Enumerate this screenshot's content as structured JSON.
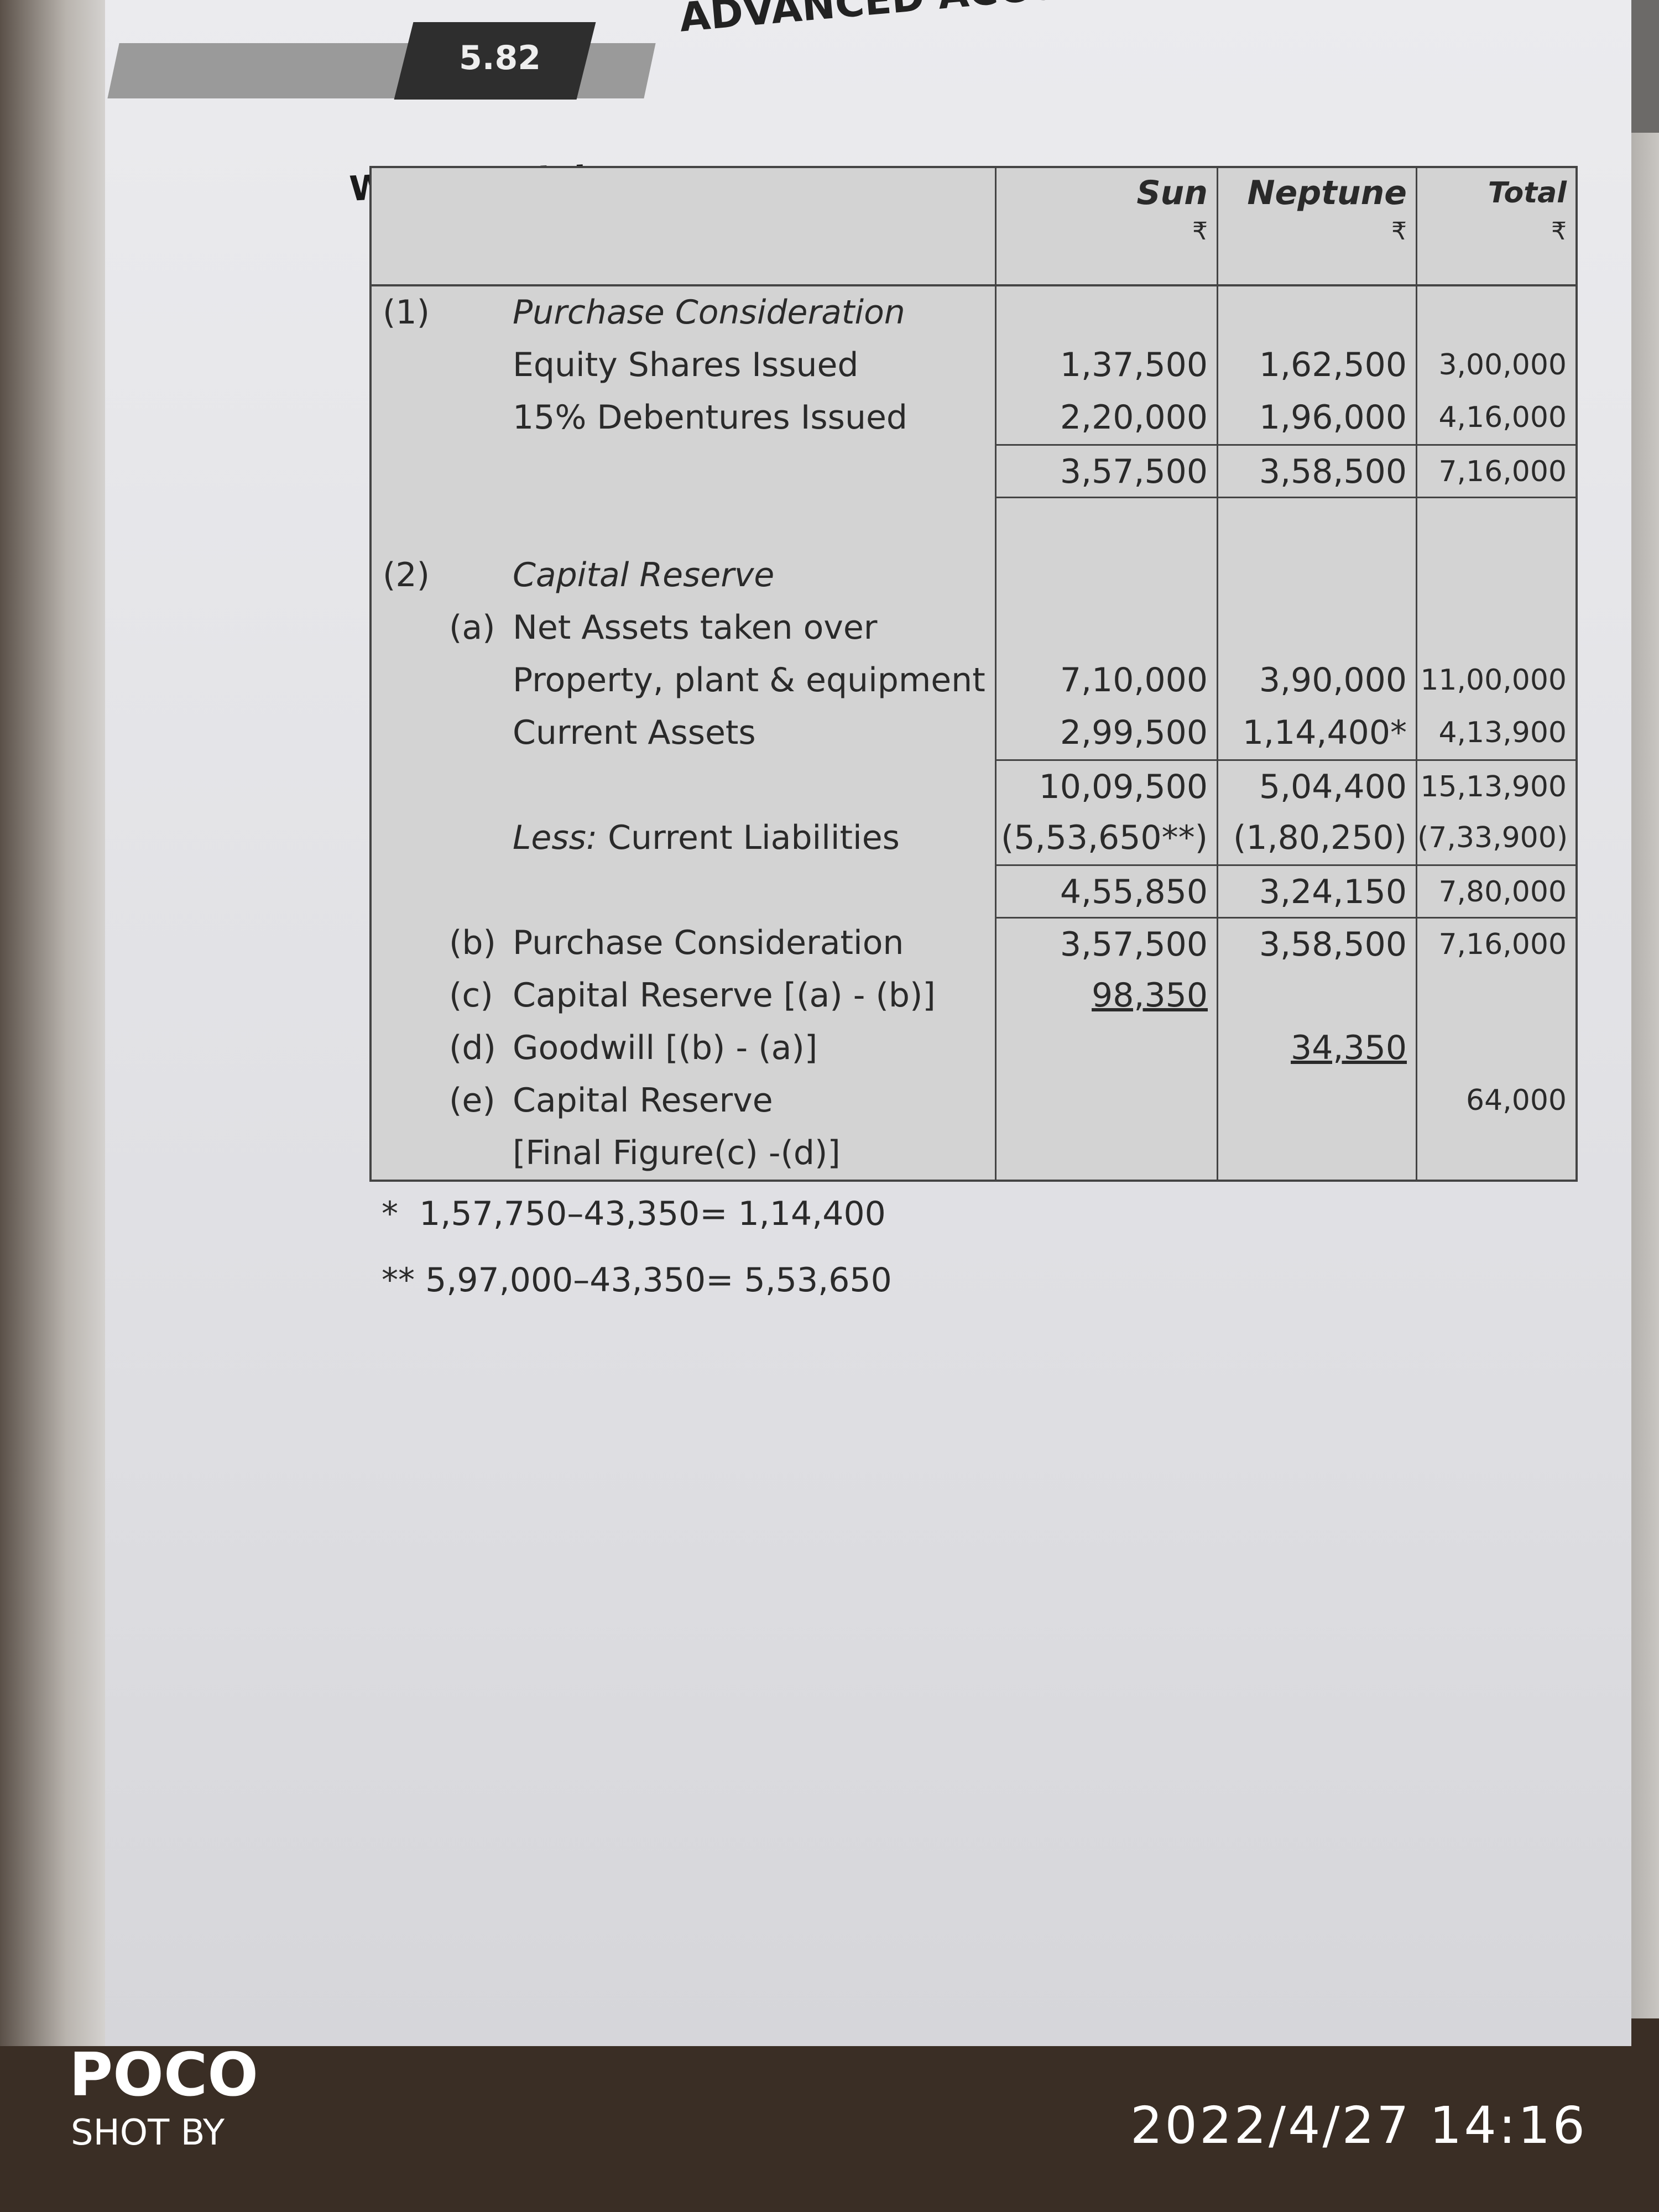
{
  "header": {
    "page_number": "5.82",
    "running_title": "ADVANCED ACCO"
  },
  "section_title": "Working Notes:",
  "table": {
    "columns": [
      {
        "name": "Sun",
        "unit": "₹"
      },
      {
        "name": "Neptune",
        "unit": "₹"
      },
      {
        "name": "Total",
        "unit": "₹"
      }
    ],
    "rows": [
      {
        "label": "(1)",
        "sub": "",
        "text": "Purchase Consideration",
        "italic": true,
        "values": [
          "",
          "",
          ""
        ]
      },
      {
        "label": "",
        "sub": "",
        "text": "Equity Shares Issued",
        "values": [
          "1,37,500",
          "1,62,500",
          "3,00,000"
        ]
      },
      {
        "label": "",
        "sub": "",
        "text": "15% Debentures Issued",
        "values": [
          "2,20,000",
          "1,96,000",
          "4,16,000"
        ]
      },
      {
        "label": "",
        "sub": "",
        "text": "",
        "rule": true,
        "values": [
          "3,57,500",
          "3,58,500",
          "7,16,000"
        ]
      },
      {
        "label": "",
        "sub": "",
        "text": "",
        "rule": true,
        "values": [
          "",
          "",
          ""
        ]
      },
      {
        "label": "(2)",
        "sub": "",
        "text": "Capital Reserve",
        "italic": true,
        "values": [
          "",
          "",
          ""
        ]
      },
      {
        "label": "",
        "sub": "(a)",
        "text": "Net Assets taken over",
        "values": [
          "",
          "",
          ""
        ]
      },
      {
        "label": "",
        "sub": "",
        "text": "Property, plant & equipment",
        "values": [
          "7,10,000",
          "3,90,000",
          "11,00,000"
        ]
      },
      {
        "label": "",
        "sub": "",
        "text": "Current Assets",
        "values": [
          "2,99,500",
          "1,14,400*",
          "4,13,900"
        ]
      },
      {
        "label": "",
        "sub": "",
        "text": "",
        "rule": true,
        "values": [
          "10,09,500",
          "5,04,400",
          "15,13,900"
        ]
      },
      {
        "label": "",
        "sub": "",
        "text": "Less: Current Liabilities",
        "values": [
          "(5,53,650**)",
          "(1,80,250)",
          "(7,33,900)"
        ]
      },
      {
        "label": "",
        "sub": "",
        "text": "",
        "rule": true,
        "values": [
          "4,55,850",
          "3,24,150",
          "7,80,000"
        ]
      },
      {
        "label": "",
        "sub": "(b)",
        "text": "Purchase Consideration",
        "rule": true,
        "values": [
          "3,57,500",
          "3,58,500",
          "7,16,000"
        ]
      },
      {
        "label": "",
        "sub": "(c)",
        "text": "Capital Reserve [(a) - (b)]",
        "values": [
          "98,350",
          "",
          ""
        ],
        "underline": [
          true,
          false,
          false
        ]
      },
      {
        "label": "",
        "sub": "(d)",
        "text": "Goodwill [(b) - (a)]",
        "values": [
          "",
          "34,350",
          ""
        ],
        "underline": [
          false,
          true,
          false
        ]
      },
      {
        "label": "",
        "sub": "(e)",
        "text": "Capital Reserve",
        "values": [
          "",
          "",
          "64,000"
        ]
      },
      {
        "label": "",
        "sub": "",
        "text": "[Final Figure(c) -(d)]",
        "values": [
          "",
          "",
          ""
        ]
      }
    ]
  },
  "footnotes": [
    {
      "mark": "*",
      "text": "1,57,750–43,350= 1,14,400"
    },
    {
      "mark": "**",
      "text": "5,97,000–43,350= 5,53,650"
    }
  ],
  "watermark": {
    "brand": "POCO",
    "caption": "SHOT BY",
    "timestamp": "2022/4/27 14:16"
  }
}
